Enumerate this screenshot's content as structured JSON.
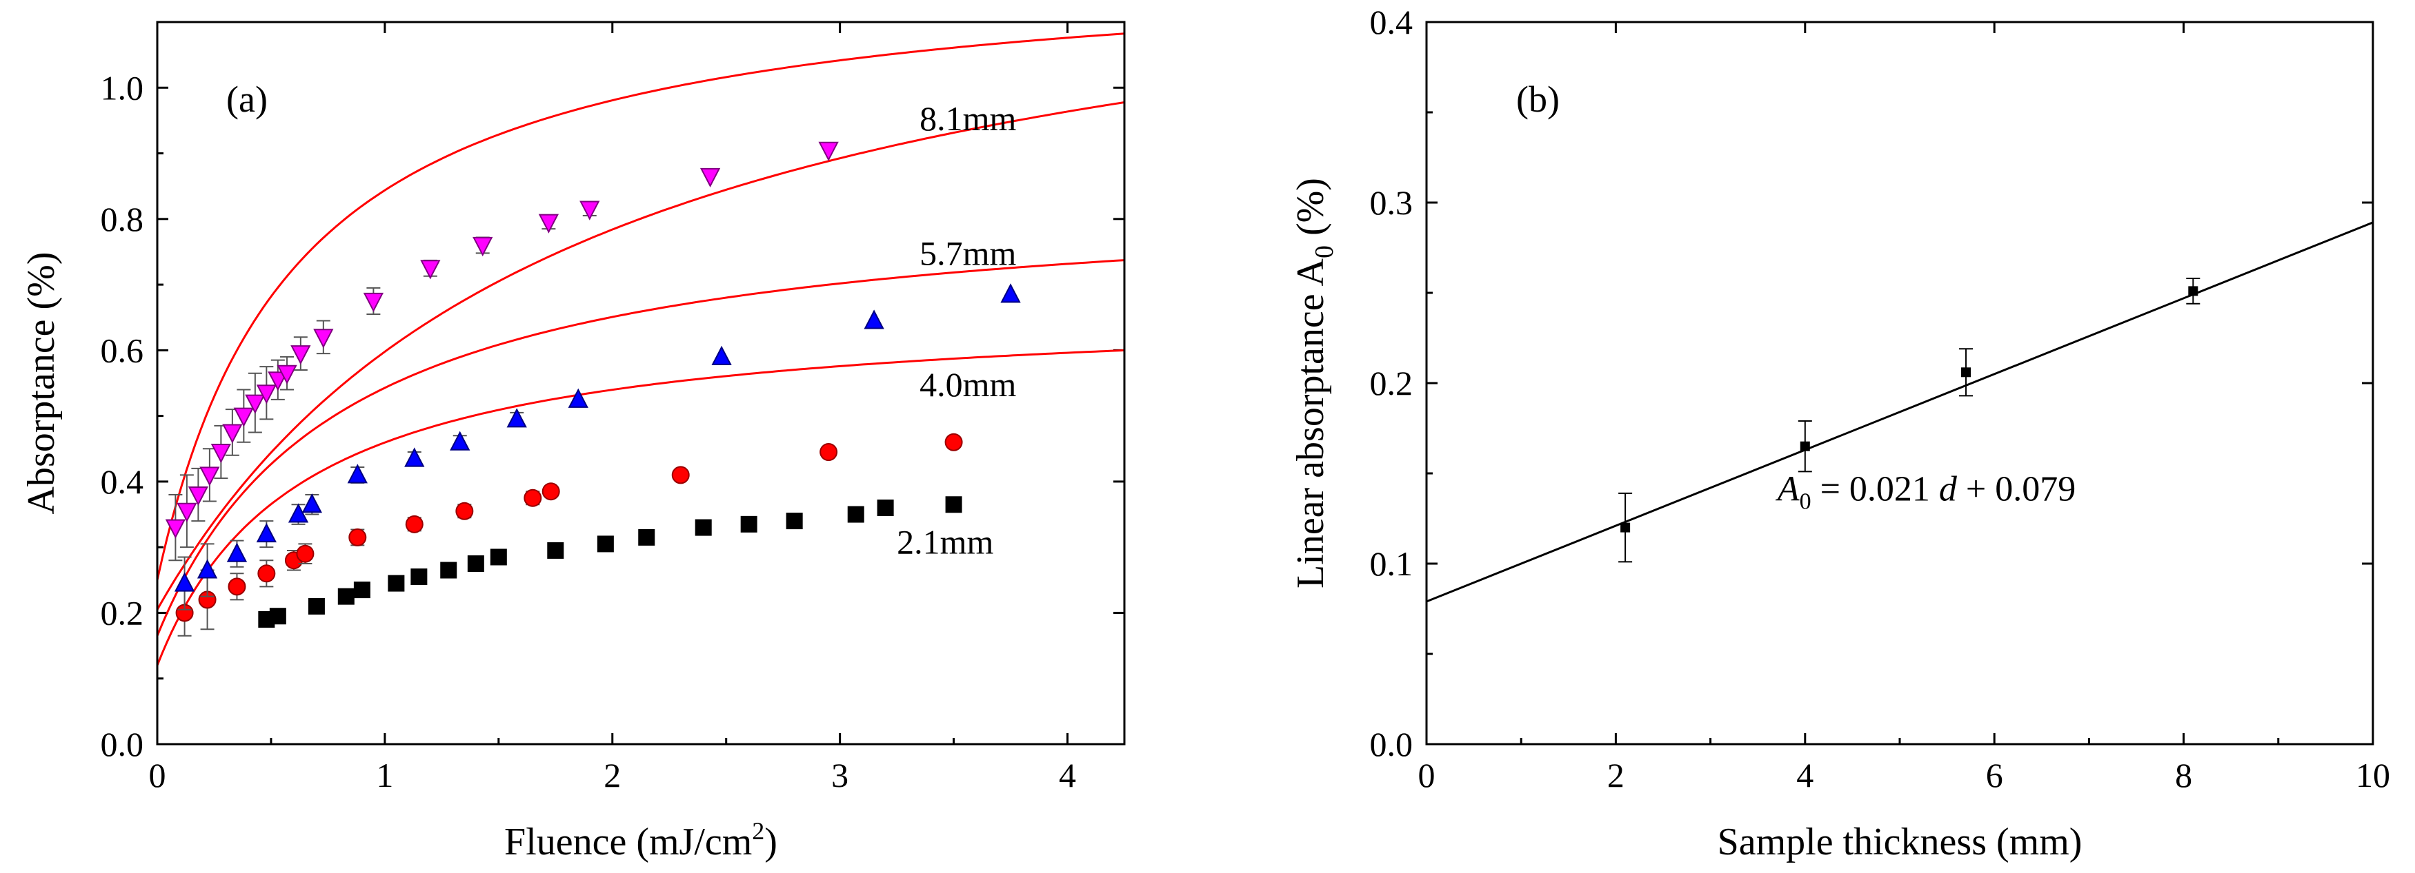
{
  "chart_data": [
    {
      "id": "a",
      "type": "scatter",
      "panel_label": "(a)",
      "xlabel": {
        "main": "Fluence (mJ/cm",
        "sup": "2",
        "end": ")"
      },
      "ylabel": "Absorptance (%)",
      "xlim": [
        0,
        4.25
      ],
      "ylim": [
        0,
        1.1
      ],
      "xticks": [
        0,
        1,
        2,
        3,
        4
      ],
      "yticks": [
        0.0,
        0.2,
        0.4,
        0.6,
        0.8,
        1.0
      ],
      "xtick_labels": [
        "0",
        "1",
        "2",
        "3",
        "4"
      ],
      "ytick_labels": [
        "0.0",
        "0.2",
        "0.4",
        "0.6",
        "0.8",
        "1.0"
      ],
      "colors": {
        "fit": "#ff0000",
        "axis": "#000000",
        "error": "#555555"
      },
      "series": [
        {
          "name": "2.1mm",
          "label": "2.1mm",
          "label_anchor": [
            3.25,
            0.29
          ],
          "marker": "square",
          "color": "#000000",
          "edge": "#000000",
          "fit": {
            "a": 0.12,
            "b": 0.55,
            "c": 0.62
          },
          "x": [
            0.48,
            0.53,
            0.7,
            0.83,
            0.9,
            1.05,
            1.15,
            1.28,
            1.4,
            1.5,
            1.75,
            1.97,
            2.15,
            2.4,
            2.6,
            2.8,
            3.07,
            3.2,
            3.5
          ],
          "y": [
            0.19,
            0.195,
            0.21,
            0.225,
            0.235,
            0.245,
            0.255,
            0.265,
            0.275,
            0.285,
            0.295,
            0.305,
            0.315,
            0.33,
            0.335,
            0.34,
            0.35,
            0.36,
            0.365
          ],
          "err": [
            0.008,
            0.008,
            0.008,
            0.008,
            0.008,
            0.008,
            0.008,
            0.008,
            0.008,
            0.008,
            0.008,
            0.008,
            0.008,
            0.008,
            0.008,
            0.008,
            0.008,
            0.008,
            0.008
          ]
        },
        {
          "name": "4.0mm",
          "label": "4.0mm",
          "label_anchor": [
            3.35,
            0.53
          ],
          "marker": "circle",
          "color": "#ff0000",
          "edge": "#990000",
          "fit": {
            "a": 0.165,
            "b": 0.68,
            "c": 0.8
          },
          "x": [
            0.12,
            0.22,
            0.35,
            0.48,
            0.6,
            0.65,
            0.88,
            1.13,
            1.35,
            1.65,
            1.73,
            2.3,
            2.95,
            3.5
          ],
          "y": [
            0.2,
            0.22,
            0.24,
            0.26,
            0.28,
            0.29,
            0.315,
            0.335,
            0.355,
            0.375,
            0.385,
            0.41,
            0.445,
            0.46
          ],
          "err": [
            0.035,
            0.045,
            0.02,
            0.02,
            0.015,
            0.015,
            0.012,
            0.01,
            0.01,
            0.01,
            0.008,
            0.008,
            0.008,
            0.008
          ]
        },
        {
          "name": "5.7mm",
          "label": "5.7mm",
          "label_anchor": [
            3.35,
            0.73
          ],
          "marker": "triangle-up",
          "color": "#0000ff",
          "edge": "#000080",
          "fit": {
            "a": 0.205,
            "b": 1.1,
            "c": 1.8
          },
          "x": [
            0.12,
            0.22,
            0.35,
            0.48,
            0.62,
            0.68,
            0.88,
            1.13,
            1.33,
            1.58,
            1.85,
            2.48,
            3.15,
            3.75
          ],
          "y": [
            0.245,
            0.265,
            0.29,
            0.32,
            0.35,
            0.365,
            0.41,
            0.435,
            0.46,
            0.495,
            0.525,
            0.59,
            0.645,
            0.685
          ],
          "err": [
            0.04,
            0.04,
            0.02,
            0.02,
            0.015,
            0.015,
            0.012,
            0.01,
            0.01,
            0.01,
            0.008,
            0.008,
            0.008,
            0.008
          ]
        },
        {
          "name": "8.1mm",
          "label": "8.1mm",
          "label_anchor": [
            3.35,
            0.935
          ],
          "marker": "triangle-down",
          "color": "#ff00ff",
          "edge": "#800080",
          "fit": {
            "a": 0.25,
            "b": 0.95,
            "c": 0.6
          },
          "x": [
            0.08,
            0.13,
            0.18,
            0.23,
            0.28,
            0.33,
            0.38,
            0.43,
            0.48,
            0.53,
            0.57,
            0.63,
            0.73,
            0.95,
            1.2,
            1.43,
            1.72,
            1.9,
            2.43,
            2.95
          ],
          "y": [
            0.33,
            0.355,
            0.38,
            0.41,
            0.445,
            0.475,
            0.5,
            0.52,
            0.535,
            0.555,
            0.565,
            0.595,
            0.62,
            0.675,
            0.725,
            0.76,
            0.795,
            0.815,
            0.865,
            0.905
          ],
          "err": [
            0.05,
            0.055,
            0.04,
            0.04,
            0.04,
            0.035,
            0.04,
            0.045,
            0.04,
            0.03,
            0.025,
            0.025,
            0.025,
            0.02,
            0.012,
            0.012,
            0.01,
            0.01,
            0.008,
            0.008
          ]
        }
      ]
    },
    {
      "id": "b",
      "type": "scatter",
      "panel_label": "(b)",
      "xlabel": "Sample thickness (mm)",
      "ylabel": {
        "main": "Linear absorptance A",
        "sub": "0",
        "end": " (%)"
      },
      "xlim": [
        0,
        10
      ],
      "ylim": [
        0,
        0.4
      ],
      "xticks": [
        0,
        2,
        4,
        6,
        8,
        10
      ],
      "yticks": [
        0.0,
        0.1,
        0.2,
        0.3,
        0.4
      ],
      "xtick_labels": [
        "0",
        "2",
        "4",
        "6",
        "8",
        "10"
      ],
      "ytick_labels": [
        "0.0",
        "0.1",
        "0.2",
        "0.3",
        "0.4"
      ],
      "colors": {
        "fit": "#000000",
        "marker": "#000000"
      },
      "fit": {
        "slope": 0.021,
        "intercept": 0.079
      },
      "equation": {
        "A": "A",
        "sub": "0",
        "rest": " = 0.021 ",
        "var": "d",
        "tail": " + 0.079"
      },
      "equation_anchor": [
        4.0,
        0.135
      ],
      "series": [
        {
          "name": "A0",
          "x": [
            2.1,
            4.0,
            5.7,
            8.1
          ],
          "y": [
            0.12,
            0.165,
            0.206,
            0.251
          ],
          "err": [
            0.019,
            0.014,
            0.013,
            0.007
          ]
        }
      ]
    }
  ]
}
